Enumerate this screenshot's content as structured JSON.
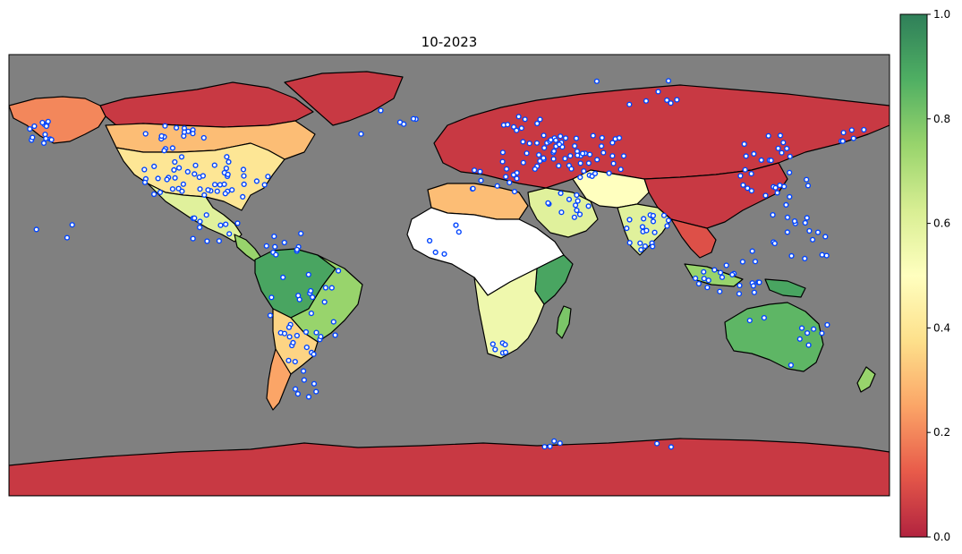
{
  "map": {
    "title": "10-2023",
    "ocean_color": "#808080",
    "border_color": "#000000",
    "station_marker": {
      "fill": "#ffffff",
      "stroke": "#0044ff"
    },
    "colormap": [
      "#b2233f",
      "#e85b4a",
      "#fba567",
      "#fde08b",
      "#ffffbf",
      "#d8ee93",
      "#98d46c",
      "#4faf63",
      "#2f7f59"
    ]
  },
  "colorbar": {
    "ticks": [
      "0.0",
      "0.2",
      "0.4",
      "0.6",
      "0.8",
      "1.0"
    ],
    "range": [
      0.0,
      1.0
    ]
  },
  "regions": [
    {
      "name": "alaska",
      "value": 0.2
    },
    {
      "name": "canada-north",
      "value": 0.05
    },
    {
      "name": "canada-south",
      "value": 0.3
    },
    {
      "name": "greenland",
      "value": 0.05
    },
    {
      "name": "usa",
      "value": 0.4
    },
    {
      "name": "mexico",
      "value": 0.6
    },
    {
      "name": "central-america",
      "value": 0.75
    },
    {
      "name": "south-america-north",
      "value": 0.9
    },
    {
      "name": "brazil-east",
      "value": 0.75
    },
    {
      "name": "south-america-south",
      "value": 0.35
    },
    {
      "name": "patagonia",
      "value": 0.25
    },
    {
      "name": "europe-russia",
      "value": 0.05
    },
    {
      "name": "north-africa",
      "value": 0.3
    },
    {
      "name": "sahara",
      "value": null
    },
    {
      "name": "east-africa",
      "value": 0.9
    },
    {
      "name": "southern-africa",
      "value": 0.55
    },
    {
      "name": "madagascar",
      "value": 0.8
    },
    {
      "name": "arabia",
      "value": 0.6
    },
    {
      "name": "central-asia",
      "value": 0.5
    },
    {
      "name": "india",
      "value": 0.6
    },
    {
      "name": "china",
      "value": 0.05
    },
    {
      "name": "southeast-asia",
      "value": 0.1
    },
    {
      "name": "indonesia",
      "value": 0.75
    },
    {
      "name": "new-guinea",
      "value": 0.9
    },
    {
      "name": "australia",
      "value": 0.85
    },
    {
      "name": "new-zealand",
      "value": 0.75
    },
    {
      "name": "antarctica",
      "value": 0.05
    }
  ]
}
